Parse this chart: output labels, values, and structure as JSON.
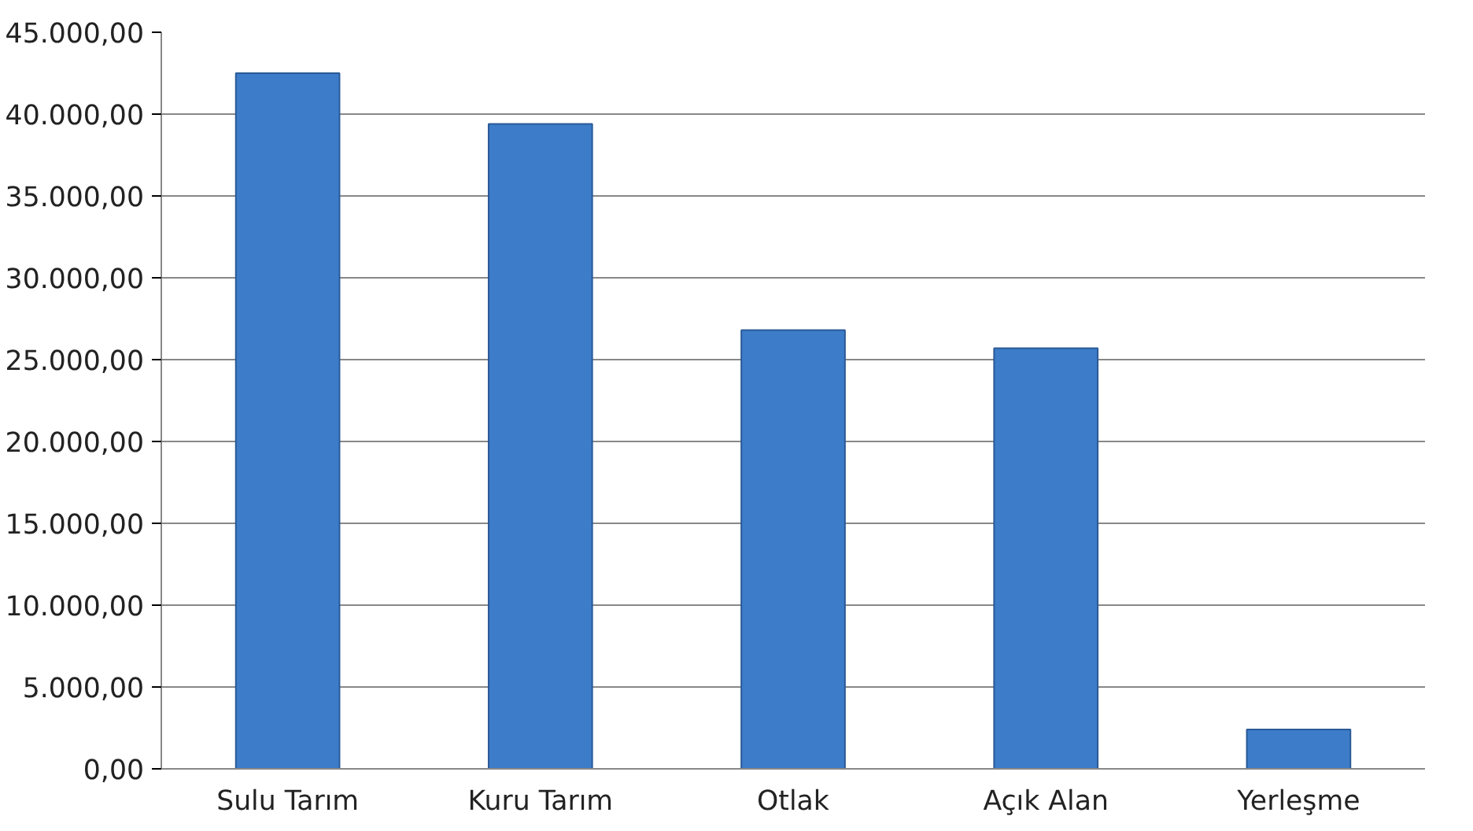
{
  "chart_data": {
    "type": "bar",
    "categories": [
      "Sulu Tarım",
      "Kuru Tarım",
      "Otlak",
      "Açık Alan",
      "Yerleşme"
    ],
    "values": [
      42500,
      39400,
      26800,
      25700,
      2400
    ],
    "color": "#3d7cc9",
    "ylim": [
      0,
      45000
    ],
    "yticks": [
      {
        "value": 0,
        "label": "0,00"
      },
      {
        "value": 5000,
        "label": "5.000,00"
      },
      {
        "value": 10000,
        "label": "10.000,00"
      },
      {
        "value": 15000,
        "label": "15.000,00"
      },
      {
        "value": 20000,
        "label": "20.000,00"
      },
      {
        "value": 25000,
        "label": "25.000,00"
      },
      {
        "value": 30000,
        "label": "30.000,00"
      },
      {
        "value": 35000,
        "label": "35.000,00"
      },
      {
        "value": 40000,
        "label": "40.000,00"
      },
      {
        "value": 45000,
        "label": "45.000,00"
      }
    ],
    "grid": "y"
  }
}
